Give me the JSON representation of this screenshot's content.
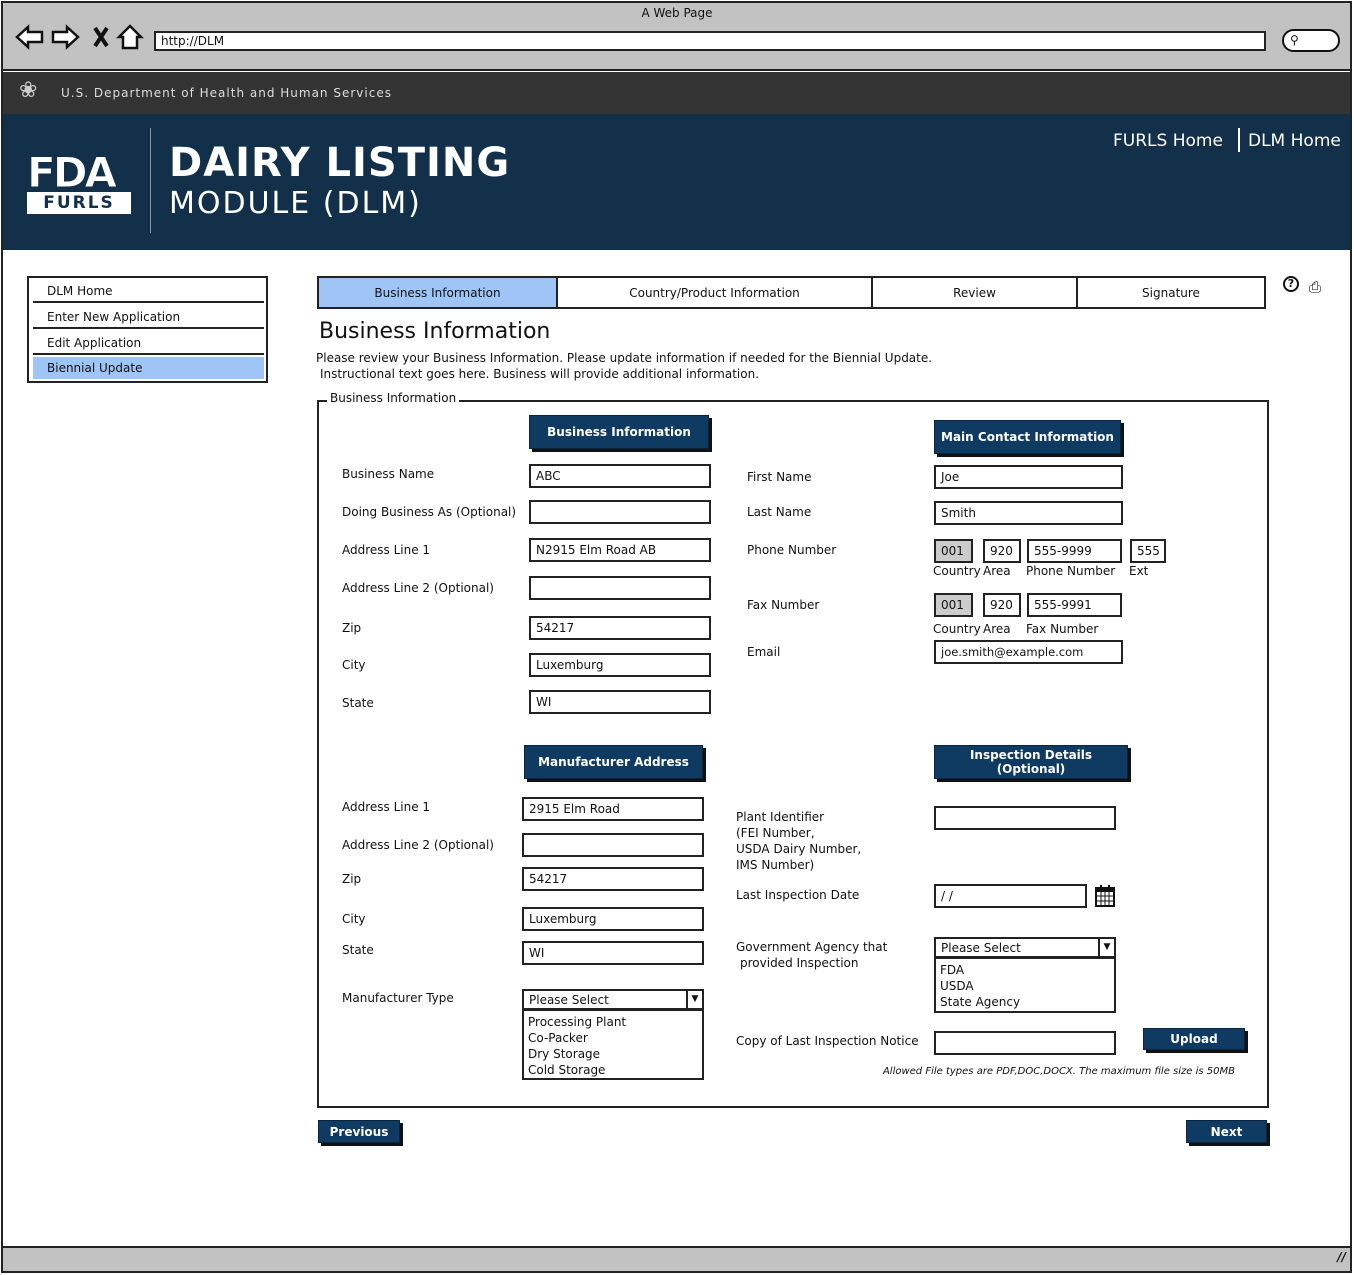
{
  "browser": {
    "title": "A Web Page",
    "url": "http://DLM"
  },
  "hhs": {
    "text": "U.S. Department of Health and Human Services"
  },
  "header": {
    "logo_fda": "FDA",
    "logo_furls": "FURLS",
    "title_line1": "DAIRY LISTING",
    "title_line2": "MODULE (DLM)",
    "links": [
      "FURLS Home",
      "DLM Home"
    ]
  },
  "sidebar": {
    "items": [
      {
        "label": "DLM Home"
      },
      {
        "label": "Enter New Application"
      },
      {
        "label": "Edit Application"
      },
      {
        "label": "Biennial Update",
        "active": true
      }
    ]
  },
  "tabs": [
    {
      "label": "Business Information",
      "active": true
    },
    {
      "label": "Country/Product Information"
    },
    {
      "label": "Review"
    },
    {
      "label": "Signature"
    }
  ],
  "page": {
    "title": "Business Information",
    "desc1": "Please review your Business Information. Please update information if needed for the Biennial Update.",
    "desc2": "Instructional text goes here. Business will provide additional information.",
    "group_legend": "Business Information"
  },
  "business": {
    "header": "Business Information",
    "fields": [
      {
        "label": "Business Name",
        "value": "ABC"
      },
      {
        "label": "Doing Business As (Optional)",
        "value": ""
      },
      {
        "label": "Address Line 1",
        "value": "N2915 Elm Road AB"
      },
      {
        "label": "Address Line 2 (Optional)",
        "value": ""
      },
      {
        "label": "Zip",
        "value": "54217"
      },
      {
        "label": "City",
        "value": "Luxemburg"
      },
      {
        "label": "State",
        "value": "WI"
      }
    ]
  },
  "contact": {
    "header": "Main Contact Information",
    "first_name_label": "First Name",
    "first_name": "Joe",
    "last_name_label": "Last Name",
    "last_name": "Smith",
    "phone_label": "Phone Number",
    "phone": {
      "country": "001",
      "area": "920",
      "number": "555-9999",
      "ext": "555"
    },
    "phone_captions": {
      "country": "Country",
      "area": "Area",
      "number": "Phone Number",
      "ext": "Ext"
    },
    "fax_label": "Fax Number",
    "fax": {
      "country": "001",
      "area": "920",
      "number": "555-9991"
    },
    "fax_captions": {
      "country": "Country",
      "area": "Area",
      "number": "Fax Number"
    },
    "email_label": "Email",
    "email": "joe.smith@example.com"
  },
  "manufacturer": {
    "header": "Manufacturer Address",
    "fields": [
      {
        "label": "Address Line 1",
        "value": "2915 Elm Road"
      },
      {
        "label": "Address Line 2 (Optional)",
        "value": ""
      },
      {
        "label": "Zip",
        "value": "54217"
      },
      {
        "label": "City",
        "value": "Luxemburg"
      },
      {
        "label": "State",
        "value": "WI"
      }
    ],
    "type_label": "Manufacturer Type",
    "type_selected": "Please Select",
    "type_options": [
      "Processing Plant",
      "Co-Packer",
      "Dry Storage",
      "Cold Storage"
    ]
  },
  "inspection": {
    "header": "Inspection Details (Optional)",
    "plant_label": [
      "Plant Identifier",
      "(FEI Number,",
      "USDA Dairy Number,",
      "IMS Number)"
    ],
    "plant_value": "",
    "date_label": "Last Inspection Date",
    "date_value": " /  /",
    "agency_label": [
      "Government Agency that",
      "provided Inspection"
    ],
    "agency_selected": "Please Select",
    "agency_options": [
      "FDA",
      "USDA",
      "State Agency"
    ],
    "copy_label": "Copy of Last Inspection Notice",
    "upload": "Upload",
    "file_note": "Allowed File types are PDF,DOC,DOCX. The maximum file size is 50MB"
  },
  "footer": {
    "previous": "Previous",
    "next": "Next"
  },
  "colors": {
    "header_bg": "#13304a",
    "button_bg": "#0f3a62",
    "active_tab": "#9ec5f5",
    "hhs_bar": "#333333"
  }
}
